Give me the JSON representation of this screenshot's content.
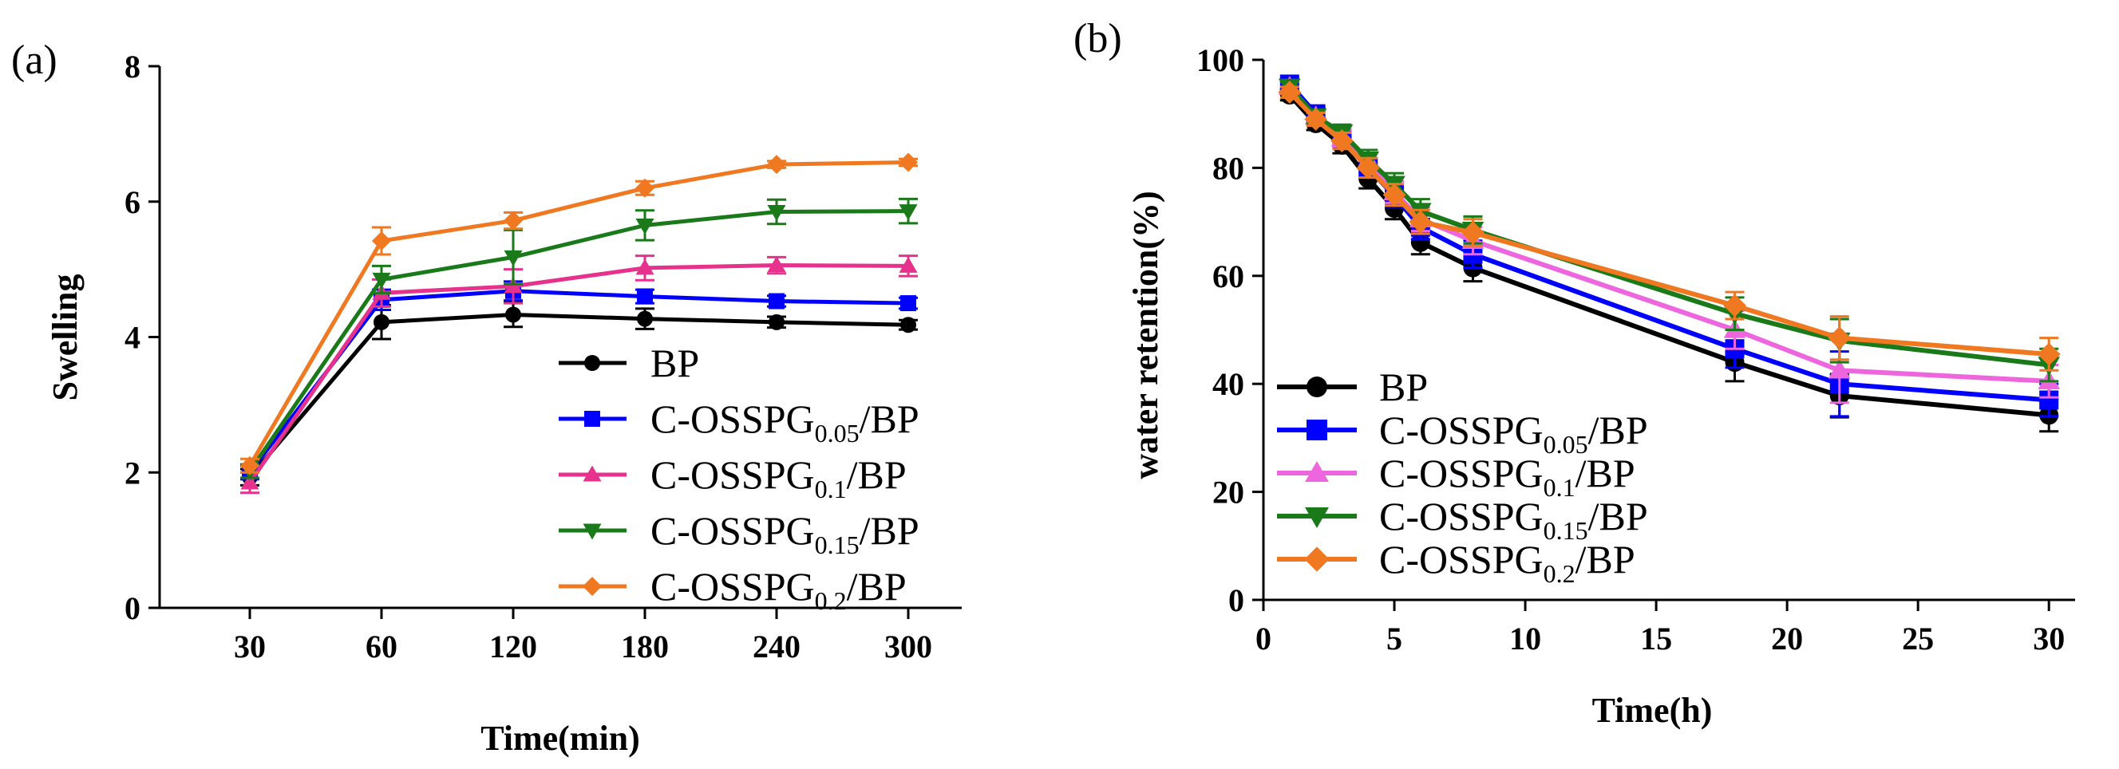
{
  "chart_data": [
    {
      "type": "line",
      "panel_label": "(a)",
      "title": "",
      "xlabel": "Time(min)",
      "ylabel": "Swelling",
      "categories": [
        "30",
        "60",
        "120",
        "180",
        "240",
        "300"
      ],
      "ylim": [
        0,
        8
      ],
      "yticks": [
        "0",
        "2",
        "4",
        "6",
        "8"
      ],
      "grid": false,
      "legend_position": "lower-right",
      "series": [
        {
          "name": "BP",
          "label_main": "BP",
          "label_sub": "",
          "label_tail": "",
          "color": "#000000",
          "marker": "circle",
          "values": [
            1.93,
            4.22,
            4.33,
            4.27,
            4.22,
            4.18
          ],
          "errors": [
            0.12,
            0.25,
            0.18,
            0.15,
            0.08,
            0.07
          ]
        },
        {
          "name": "C-OSSPG0.05/BP",
          "label_main": "C-OSSPG",
          "label_sub": "0.05",
          "label_tail": "/BP",
          "color": "#0000ff",
          "marker": "square",
          "values": [
            2.0,
            4.55,
            4.68,
            4.6,
            4.53,
            4.5
          ],
          "errors": [
            0.1,
            0.15,
            0.14,
            0.1,
            0.08,
            0.08
          ]
        },
        {
          "name": "C-OSSPG0.1/BP",
          "label_main": "C-OSSPG",
          "label_sub": "0.1",
          "label_tail": "/BP",
          "color": "#e6328c",
          "marker": "triangle-up",
          "values": [
            1.85,
            4.65,
            4.75,
            5.02,
            5.06,
            5.05
          ],
          "errors": [
            0.15,
            0.2,
            0.25,
            0.18,
            0.12,
            0.15
          ]
        },
        {
          "name": "C-OSSPG0.15/BP",
          "label_main": "C-OSSPG",
          "label_sub": "0.15",
          "label_tail": "/BP",
          "color": "#1a7a1a",
          "marker": "triangle-down",
          "values": [
            2.02,
            4.85,
            5.18,
            5.65,
            5.85,
            5.86
          ],
          "errors": [
            0.1,
            0.2,
            0.4,
            0.22,
            0.18,
            0.18
          ]
        },
        {
          "name": "C-OSSPG0.2/BP",
          "label_main": "C-OSSPG",
          "label_sub": "0.2",
          "label_tail": "/BP",
          "color": "#f07820",
          "marker": "diamond",
          "values": [
            2.1,
            5.42,
            5.72,
            6.2,
            6.55,
            6.58
          ],
          "errors": [
            0.1,
            0.2,
            0.12,
            0.1,
            0.05,
            0.05
          ]
        }
      ]
    },
    {
      "type": "line",
      "panel_label": "(b)",
      "title": "",
      "xlabel": "Time(h)",
      "ylabel": "water retention(%)",
      "x": [
        1,
        2,
        3,
        4,
        5,
        6,
        8,
        18,
        22,
        30
      ],
      "xlim": [
        0,
        31
      ],
      "xticks": [
        "0",
        "5",
        "10",
        "15",
        "20",
        "25",
        "30"
      ],
      "ylim": [
        0,
        100
      ],
      "yticks": [
        "0",
        "20",
        "40",
        "60",
        "80",
        "100"
      ],
      "grid": false,
      "legend_position": "lower-left",
      "series": [
        {
          "name": "BP",
          "label_main": "BP",
          "label_sub": "",
          "label_tail": "",
          "color": "#000000",
          "marker": "circle",
          "values": [
            93.5,
            88.2,
            84.2,
            78.0,
            72.5,
            66.2,
            61.5,
            44.0,
            37.8,
            34.2
          ],
          "errors": [
            1.0,
            1.2,
            1.5,
            1.8,
            2.0,
            2.2,
            2.5,
            3.5,
            4.0,
            3.0
          ]
        },
        {
          "name": "C-OSSPG0.05/BP",
          "label_main": "C-OSSPG",
          "label_sub": "0.05",
          "label_tail": "/BP",
          "color": "#0000ff",
          "marker": "square",
          "values": [
            95.5,
            90.0,
            85.5,
            80.0,
            74.8,
            69.0,
            64.0,
            46.5,
            40.0,
            37.0
          ],
          "errors": [
            1.0,
            1.2,
            1.5,
            1.8,
            2.0,
            2.2,
            2.5,
            3.5,
            6.0,
            3.0
          ]
        },
        {
          "name": "C-OSSPG0.1/BP",
          "label_main": "C-OSSPG",
          "label_sub": "0.1",
          "label_tail": "/BP",
          "color": "#ee66dd",
          "marker": "triangle-up",
          "values": [
            95.0,
            89.5,
            85.5,
            81.5,
            75.5,
            70.5,
            66.5,
            50.0,
            42.5,
            40.5
          ],
          "errors": [
            1.0,
            1.2,
            1.5,
            1.8,
            2.0,
            2.2,
            2.5,
            3.5,
            6.0,
            3.0
          ]
        },
        {
          "name": "C-OSSPG0.15/BP",
          "label_main": "C-OSSPG",
          "label_sub": "0.15",
          "label_tail": "/BP",
          "color": "#1a7a1a",
          "marker": "triangle-down",
          "values": [
            95.0,
            89.5,
            86.5,
            81.5,
            77.0,
            72.0,
            68.5,
            53.0,
            48.0,
            43.5
          ],
          "errors": [
            1.0,
            1.2,
            1.5,
            1.8,
            2.0,
            2.2,
            2.5,
            3.0,
            4.0,
            3.0
          ]
        },
        {
          "name": "C-OSSPG0.2/BP",
          "label_main": "C-OSSPG",
          "label_sub": "0.2",
          "label_tail": "/BP",
          "color": "#f07820",
          "marker": "diamond",
          "values": [
            94.0,
            89.0,
            85.0,
            80.0,
            75.0,
            70.0,
            68.0,
            54.5,
            48.5,
            45.5
          ],
          "errors": [
            1.0,
            1.2,
            1.5,
            1.8,
            2.0,
            2.2,
            2.5,
            2.5,
            4.0,
            3.0
          ]
        }
      ]
    }
  ]
}
